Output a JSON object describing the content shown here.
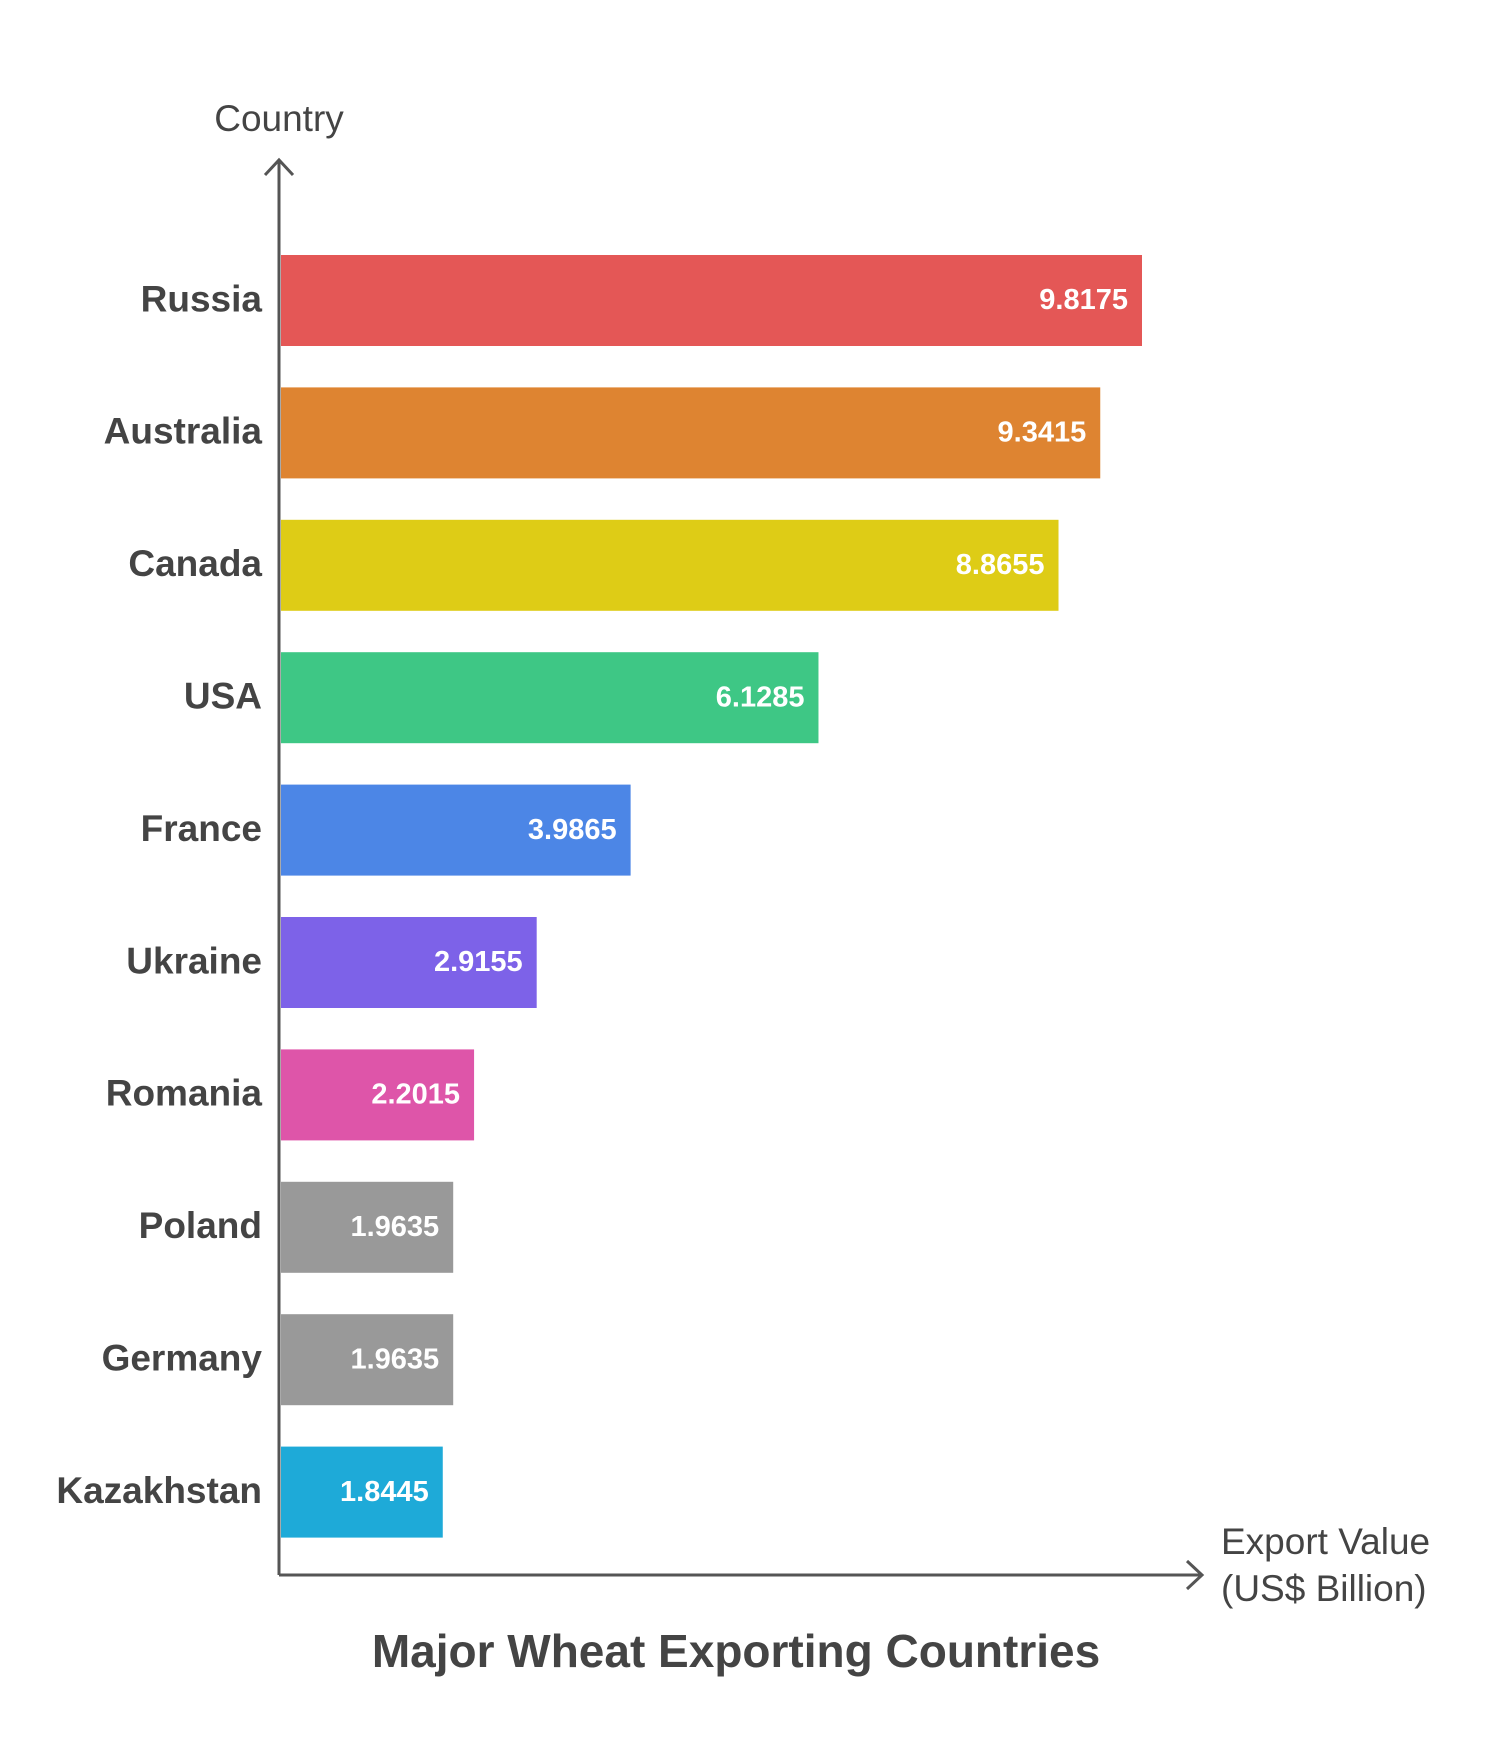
{
  "chart_data": {
    "type": "bar",
    "orientation": "horizontal",
    "title": "Major Wheat Exporting Countries",
    "y_label": "Country",
    "x_label": "Export Value (US$ Billion)",
    "categories": [
      "Russia",
      "Australia",
      "Canada",
      "USA",
      "France",
      "Ukraine",
      "Romania",
      "Poland",
      "Germany",
      "Kazakhstan"
    ],
    "values": [
      9.8175,
      9.3415,
      8.8655,
      6.1285,
      3.9865,
      2.9155,
      2.2015,
      1.9635,
      1.9635,
      1.8445
    ],
    "colors": [
      "#e45756",
      "#de8431",
      "#decc16",
      "#3ec785",
      "#4c86e6",
      "#7d62e8",
      "#de55a9",
      "#999999",
      "#999999",
      "#1eaad8"
    ]
  }
}
